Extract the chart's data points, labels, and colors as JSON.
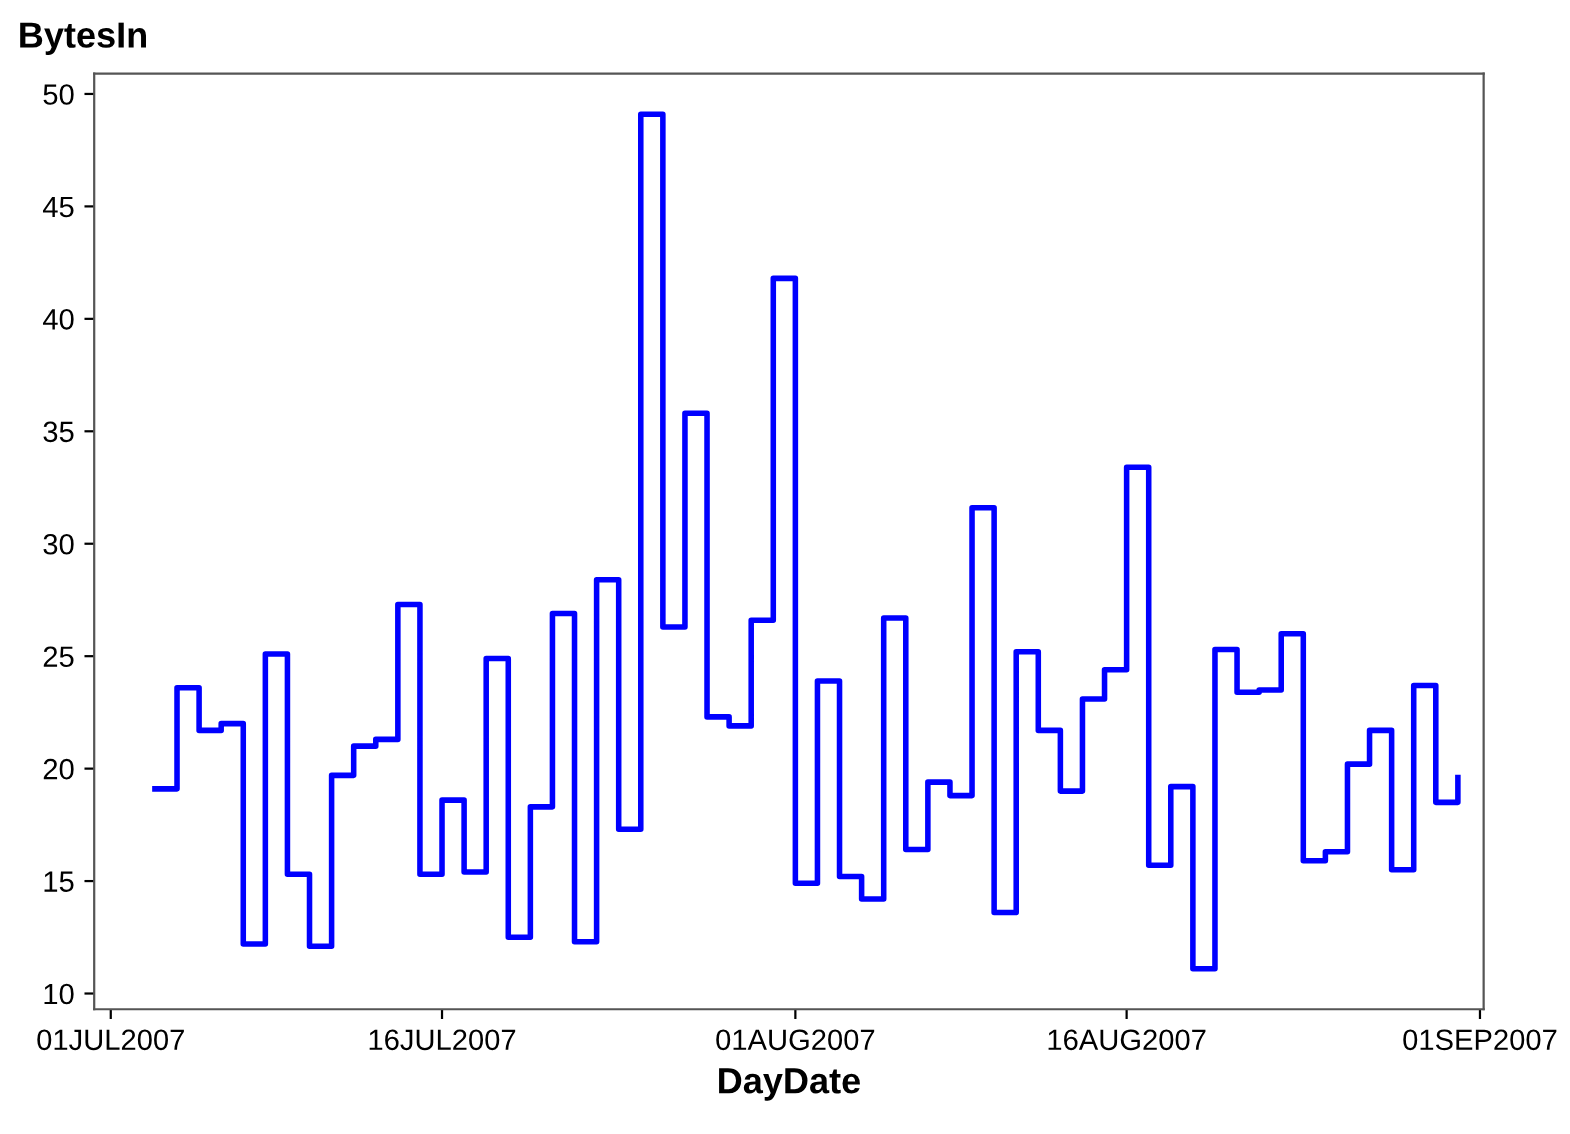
{
  "chart_data": {
    "type": "step",
    "ylabel": "BytesIn",
    "xlabel": "DayDate",
    "x": [
      "2007-07-03",
      "2007-07-04",
      "2007-07-05",
      "2007-07-06",
      "2007-07-07",
      "2007-07-08",
      "2007-07-09",
      "2007-07-10",
      "2007-07-11",
      "2007-07-12",
      "2007-07-13",
      "2007-07-14",
      "2007-07-15",
      "2007-07-16",
      "2007-07-17",
      "2007-07-18",
      "2007-07-19",
      "2007-07-20",
      "2007-07-21",
      "2007-07-22",
      "2007-07-23",
      "2007-07-24",
      "2007-07-25",
      "2007-07-26",
      "2007-07-27",
      "2007-07-28",
      "2007-07-29",
      "2007-07-30",
      "2007-07-31",
      "2007-08-01",
      "2007-08-02",
      "2007-08-03",
      "2007-08-04",
      "2007-08-05",
      "2007-08-06",
      "2007-08-07",
      "2007-08-08",
      "2007-08-09",
      "2007-08-10",
      "2007-08-11",
      "2007-08-12",
      "2007-08-13",
      "2007-08-14",
      "2007-08-15",
      "2007-08-16",
      "2007-08-17",
      "2007-08-18",
      "2007-08-19",
      "2007-08-20",
      "2007-08-21",
      "2007-08-22",
      "2007-08-23",
      "2007-08-24",
      "2007-08-25",
      "2007-08-26",
      "2007-08-27",
      "2007-08-28",
      "2007-08-29",
      "2007-08-30",
      "2007-08-31"
    ],
    "series": [
      {
        "color": "#0000ff",
        "values": [
          19.1,
          23.6,
          21.7,
          22.0,
          12.2,
          25.1,
          15.3,
          12.1,
          19.7,
          21.0,
          21.3,
          27.3,
          15.3,
          18.6,
          15.4,
          24.9,
          12.5,
          18.3,
          26.9,
          12.3,
          28.4,
          17.3,
          49.1,
          26.3,
          35.8,
          22.3,
          21.9,
          26.6,
          41.8,
          14.9,
          23.9,
          15.2,
          14.2,
          26.7,
          16.4,
          19.4,
          18.8,
          31.6,
          13.6,
          25.2,
          21.7,
          19.0,
          23.1,
          24.4,
          33.4,
          15.7,
          19.2,
          11.1,
          25.3,
          23.4,
          23.5,
          26.0,
          15.9,
          16.3,
          20.2,
          21.7,
          15.5,
          23.7,
          18.5,
          19.6
        ]
      }
    ],
    "xlim": [
      "2007-06-30T06:00",
      "2007-09-01T04:00"
    ],
    "xticks": [
      {
        "value": "2007-07-01",
        "label": "01JUL2007"
      },
      {
        "value": "2007-07-16",
        "label": "16JUL2007"
      },
      {
        "value": "2007-08-01",
        "label": "01AUG2007"
      },
      {
        "value": "2007-08-16",
        "label": "16AUG2007"
      },
      {
        "value": "2007-09-01",
        "label": "01SEP2007"
      }
    ],
    "ylim": [
      9.3,
      50.9
    ],
    "yticks": [
      10,
      15,
      20,
      25,
      30,
      35,
      40,
      45,
      50
    ],
    "grid": false,
    "legend": false
  }
}
